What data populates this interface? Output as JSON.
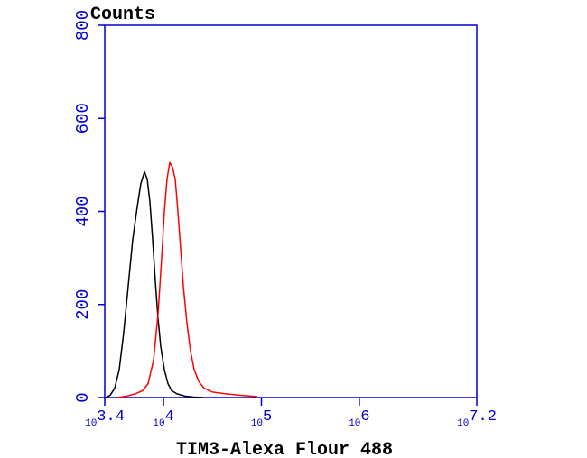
{
  "chart_data": {
    "type": "line",
    "title": "Counts",
    "x_label": "TIM3-Alexa Flour 488",
    "xlog": true,
    "xlim": [
      2511.886,
      15848931.92
    ],
    "xticks": [
      {
        "value": 2511.886,
        "label": "10",
        "exponent": "3.4"
      },
      {
        "value": 10000,
        "label": "10",
        "exponent": "4"
      },
      {
        "value": 100000,
        "label": "10",
        "exponent": "5"
      },
      {
        "value": 1000000,
        "label": "10",
        "exponent": "6"
      },
      {
        "value": 15848931.92,
        "label": "10",
        "exponent": "7.2"
      }
    ],
    "ylim": [
      0,
      800
    ],
    "yticks": [
      0,
      200,
      400,
      600,
      800
    ],
    "axis_color": "#0000cc",
    "series": [
      {
        "color": "#000000",
        "x": [
          2566,
          2853,
          3173,
          3528,
          3923,
          4363,
          4852,
          5395,
          5874,
          6395,
          6816,
          7266,
          7743,
          8251,
          8795,
          9369,
          10202,
          11108,
          12090,
          13737,
          16629,
          20564,
          25431
        ],
        "values": [
          0,
          5,
          20,
          60,
          140,
          240,
          340,
          410,
          460,
          485,
          470,
          420,
          340,
          250,
          170,
          110,
          60,
          30,
          15,
          8,
          3,
          1,
          0
        ]
      },
      {
        "color": "#ff0000",
        "x": [
          3381,
          4182,
          5170,
          6130,
          6962,
          7910,
          8795,
          9575,
          10202,
          10875,
          11591,
          12354,
          13163,
          14032,
          14957,
          15939,
          17353,
          18893,
          20564,
          22868,
          25970,
          31446,
          43239,
          59475,
          90945
        ],
        "values": [
          0,
          3,
          8,
          15,
          30,
          80,
          180,
          300,
          400,
          470,
          505,
          495,
          470,
          400,
          320,
          240,
          160,
          100,
          60,
          35,
          20,
          12,
          8,
          5,
          2
        ]
      }
    ]
  }
}
